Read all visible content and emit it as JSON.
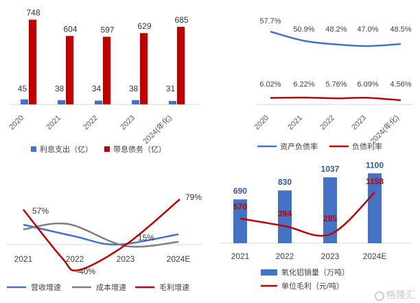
{
  "chart_data": [
    {
      "type": "bar",
      "categories": [
        "2020",
        "2021",
        "2022",
        "2023",
        "2024(年化)"
      ],
      "series": [
        {
          "name": "利息支出（亿）",
          "values": [
            45,
            38,
            34,
            38,
            31
          ],
          "color": "#4472c4"
        },
        {
          "name": "带息债务（亿）",
          "values": [
            748,
            604,
            597,
            629,
            685
          ],
          "color": "#c00000"
        }
      ],
      "ylim": [
        0,
        800
      ],
      "legend": "bottom"
    },
    {
      "type": "line",
      "categories": [
        "2020",
        "2021",
        "2022",
        "2023",
        "2024(年化)"
      ],
      "series": [
        {
          "name": "资产负债率",
          "values": [
            57.7,
            50.9,
            48.2,
            47.0,
            48.5
          ],
          "labels": [
            "57.7%",
            "50.9%",
            "48.2%",
            "47.0%",
            "48.5%"
          ],
          "color": "#4472c4"
        },
        {
          "name": "负债利率",
          "values": [
            6.02,
            6.22,
            5.76,
            6.09,
            4.56
          ],
          "labels": [
            "6.02%",
            "6.22%",
            "5.76%",
            "6.09%",
            "4.56%"
          ],
          "color": "#c00000"
        }
      ],
      "legend": "bottom"
    },
    {
      "type": "line",
      "categories": [
        "2021",
        "2022",
        "2023",
        "2024E"
      ],
      "series": [
        {
          "name": "营收增速",
          "values": [
            -5,
            -28,
            -45,
            -28
          ],
          "color": "#4472c4"
        },
        {
          "name": "成本增速",
          "values": [
            -10,
            5,
            -52,
            -40
          ],
          "color": "#7f7f7f"
        },
        {
          "name": "毛利增速",
          "values": [
            57,
            -40,
            -36,
            79
          ],
          "labels": [
            "57%",
            "-40%",
            "",
            "79%"
          ],
          "color": "#c00000"
        }
      ],
      "annotations": [
        "15%"
      ],
      "legend": "bottom"
    },
    {
      "type": "bar",
      "categories": [
        "2021",
        "2022",
        "2023",
        "2024E"
      ],
      "series": [
        {
          "name": "氧化铝销量（万吨）",
          "values": [
            690,
            830,
            1037,
            1100
          ],
          "color": "#4472c4"
        },
        {
          "name": "单位毛利（元/吨）",
          "type": "line",
          "values": [
            570,
            394,
            285,
            1158
          ],
          "color": "#c00000"
        }
      ],
      "legend": "bottom"
    }
  ],
  "watermark": "格隆汇"
}
